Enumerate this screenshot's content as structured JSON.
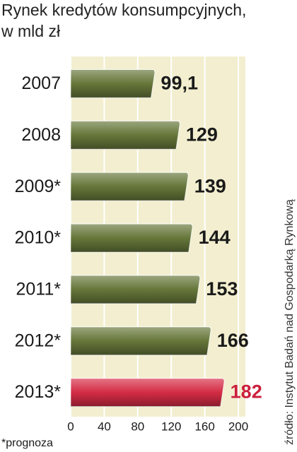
{
  "chart_data": {
    "type": "bar",
    "orientation": "horizontal",
    "title": [
      "Rynek kredytów konsumpcyjnych,",
      "w mld zł"
    ],
    "categories": [
      "2007",
      "2008",
      "2009*",
      "2010*",
      "2011*",
      "2012*",
      "2013*"
    ],
    "values": [
      99.1,
      129,
      139,
      144,
      153,
      166,
      182
    ],
    "value_labels": [
      "99,1",
      "129",
      "139",
      "144",
      "153",
      "166",
      "182"
    ],
    "colors": [
      "#66773a",
      "#66773a",
      "#66773a",
      "#66773a",
      "#66773a",
      "#66773a",
      "#d42c45"
    ],
    "value_label_colors": [
      "#1a1a1a",
      "#1a1a1a",
      "#1a1a1a",
      "#1a1a1a",
      "#1a1a1a",
      "#1a1a1a",
      "#cc1f3d"
    ],
    "xlim": [
      0,
      200
    ],
    "xticks": [
      0,
      40,
      80,
      120,
      160,
      200
    ],
    "grid": true,
    "note": "*prognoza",
    "source": "źródło: Instytut Badań nad Gospodarką Rynkową"
  }
}
